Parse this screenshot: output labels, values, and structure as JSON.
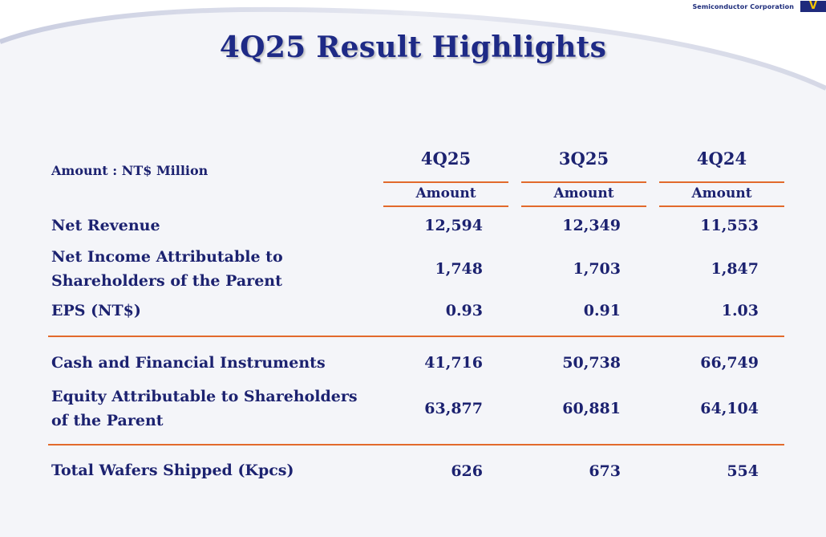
{
  "logo": {
    "company": "Semiconductor Corporation",
    "mark": "V"
  },
  "title": "4Q25 Result Highlights",
  "unit_label": "Amount : NT$ Million",
  "columns": [
    {
      "period": "4Q25",
      "sub": "Amount"
    },
    {
      "period": "3Q25",
      "sub": "Amount"
    },
    {
      "period": "4Q24",
      "sub": "Amount"
    }
  ],
  "rows": [
    {
      "label_lines": [
        "Net Revenue"
      ],
      "values": [
        "12,594",
        "12,349",
        "11,553"
      ]
    },
    {
      "label_lines": [
        "Net Income Attributable to",
        "Shareholders of the Parent"
      ],
      "values": [
        "1,748",
        "1,703",
        "1,847"
      ]
    },
    {
      "label_lines": [
        "EPS (NT$)"
      ],
      "values": [
        "0.93",
        "0.91",
        "1.03"
      ]
    },
    {
      "label_lines": [
        "Cash and Financial Instruments"
      ],
      "values": [
        "41,716",
        "50,738",
        "66,749"
      ]
    },
    {
      "label_lines": [
        "Equity Attributable to Shareholders",
        "of the Parent"
      ],
      "values": [
        "63,877",
        "60,881",
        "64,104"
      ]
    },
    {
      "label_lines": [
        "Total Wafers Shipped (Kpcs)"
      ],
      "values": [
        "626",
        "673",
        "554"
      ]
    }
  ],
  "colors": {
    "title": "#1e2a86",
    "text": "#1c2270",
    "rule": "#e26a2c",
    "logo_bg": "#1f2a7c",
    "logo_accent": "#f5c400"
  }
}
